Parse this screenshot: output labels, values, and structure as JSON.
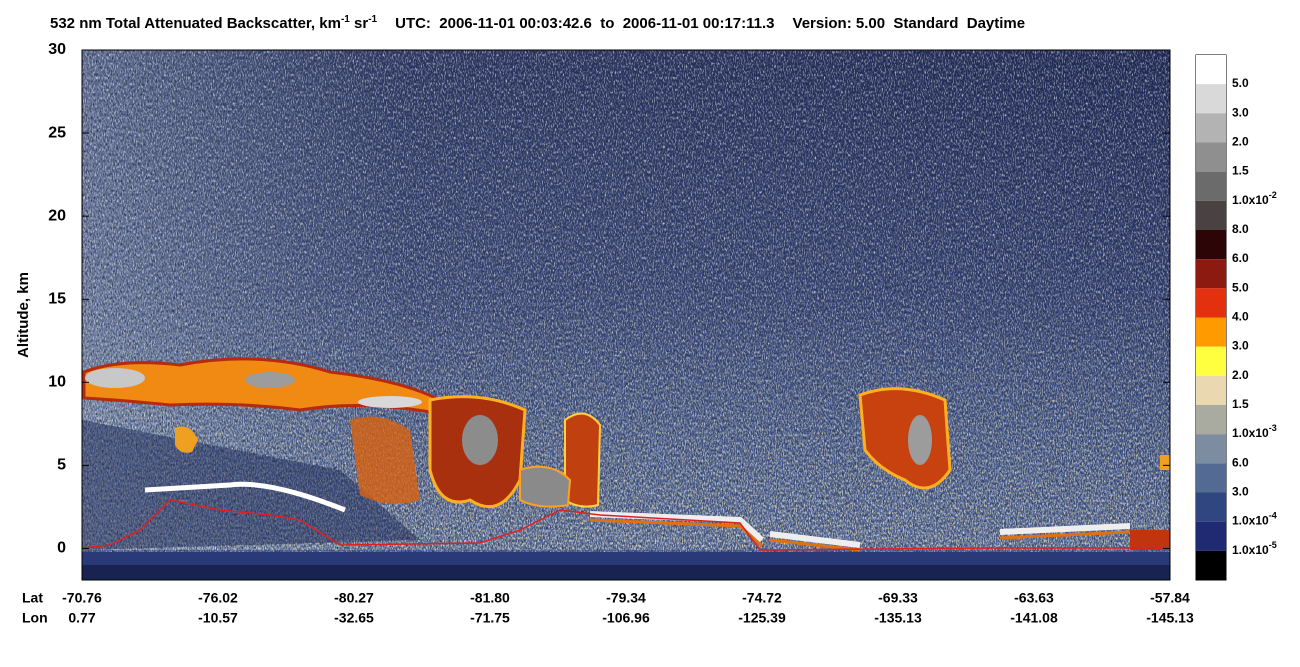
{
  "chart_data": {
    "type": "heatmap",
    "title": {
      "main": "532 nm Total Attenuated Backscatter, km",
      "sup1": "-1",
      "unit": "sr",
      "sup2": "-1",
      "utc": "UTC:  2006-11-01 00:03:42.6  to  2006-11-01 00:17:11.3",
      "version": "Version: 5.00  Standard  Daytime"
    },
    "ylabel": "Altitude, km",
    "ylim": [
      -1.9,
      30
    ],
    "yticks": [
      0,
      5,
      10,
      15,
      20,
      25,
      30
    ],
    "x_rows": [
      {
        "name": "Lat",
        "categories": [
          "-70.76",
          "-76.02",
          "-80.27",
          "-81.80",
          "-79.34",
          "-74.72",
          "-69.33",
          "-63.63",
          "-57.84"
        ]
      },
      {
        "name": "Lon",
        "categories": [
          "0.77",
          "-10.57",
          "-32.65",
          "-71.75",
          "-106.96",
          "-125.39",
          "-135.13",
          "-141.08",
          "-145.13"
        ]
      }
    ],
    "colorbar": {
      "colors": [
        "#ffffff",
        "#d9d9d9",
        "#b3b3b3",
        "#8f8f8f",
        "#6b6b6b",
        "#4a4242",
        "#2c0606",
        "#8c1a10",
        "#e3300f",
        "#ff9a00",
        "#ffff40",
        "#e9d8b0",
        "#a9aba0",
        "#7d8da0",
        "#536a92",
        "#2f4680",
        "#1f2a72",
        "#000000"
      ],
      "labels": [
        {
          "mantissa": "5.0"
        },
        {
          "mantissa": "3.0"
        },
        {
          "mantissa": "2.0"
        },
        {
          "mantissa": "1.5"
        },
        {
          "mantissa": "1.0x10",
          "exponent": "-2"
        },
        {
          "mantissa": "8.0"
        },
        {
          "mantissa": "6.0"
        },
        {
          "mantissa": "5.0"
        },
        {
          "mantissa": "4.0"
        },
        {
          "mantissa": "3.0"
        },
        {
          "mantissa": "2.0"
        },
        {
          "mantissa": "1.5"
        },
        {
          "mantissa": "1.0x10",
          "exponent": "-3"
        },
        {
          "mantissa": "6.0"
        },
        {
          "mantissa": "3.0"
        },
        {
          "mantissa": "1.0x10",
          "exponent": "-4"
        },
        {
          "mantissa": "1.0x10",
          "exponent": "-5"
        }
      ]
    }
  }
}
